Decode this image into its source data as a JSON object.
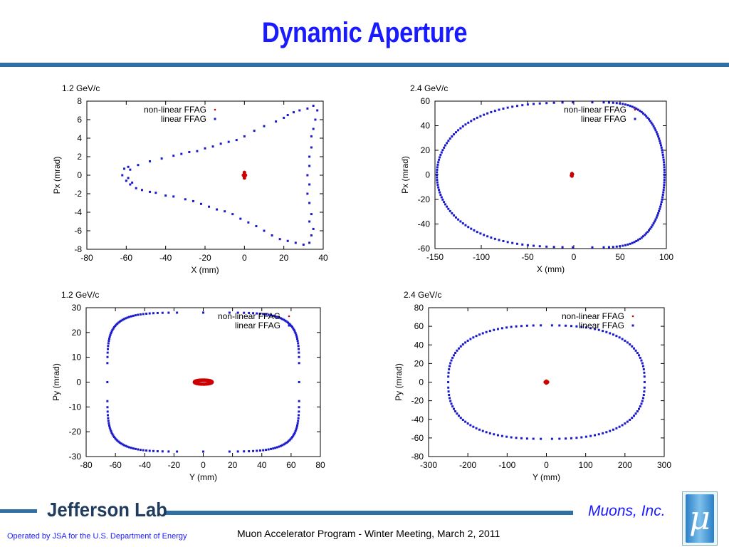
{
  "slide": {
    "title": "Dynamic Aperture",
    "footer_left": "Operated by JSA for the U.S. Department of Energy",
    "footer_center": "Muon Accelerator Program - Winter Meeting, March 2, 2011",
    "logo_text": "Jefferson Lab",
    "brand_text": "Muons, Inc.",
    "brand_glyph": "μ"
  },
  "colors": {
    "title": "#1a1aff",
    "rule": "#2f6fa3",
    "nonlinear": "#cc0000",
    "linear": "#1a1acc"
  },
  "chart_data": [
    {
      "type": "scatter",
      "title": "1.2 GeV/c",
      "xlabel": "X (mm)",
      "ylabel": "Px (mrad)",
      "xlim": [
        -80,
        40
      ],
      "ylim": [
        -8,
        8
      ],
      "xticks": [
        -80,
        -60,
        -40,
        -20,
        0,
        20,
        40
      ],
      "yticks": [
        -8,
        -6,
        -4,
        -2,
        0,
        2,
        4,
        6,
        8
      ],
      "legend_position": "top-left",
      "series": [
        {
          "name": "non-linear FFAG",
          "marker": "dot",
          "color": "#cc0000",
          "points": [
            [
              0,
              0.3
            ],
            [
              0,
              -0.3
            ],
            [
              -0.5,
              0
            ],
            [
              0.5,
              0
            ],
            [
              0,
              0.1
            ],
            [
              0,
              -0.1
            ]
          ]
        },
        {
          "name": "linear FFAG",
          "marker": "square",
          "color": "#1a1acc",
          "points": [
            [
              -62,
              0
            ],
            [
              -61,
              0.7
            ],
            [
              -59,
              0.9
            ],
            [
              -60,
              -0.6
            ],
            [
              -58,
              -1
            ],
            [
              -55,
              -1.4
            ],
            [
              -52,
              -1.6
            ],
            [
              -48,
              -1.8
            ],
            [
              -45,
              -1.9
            ],
            [
              -40,
              -2.2
            ],
            [
              -36,
              -2.3
            ],
            [
              -30,
              -2.6
            ],
            [
              -26,
              -2.8
            ],
            [
              -22,
              -3.1
            ],
            [
              -18,
              -3.4
            ],
            [
              -14,
              -3.7
            ],
            [
              -10,
              -3.9
            ],
            [
              -6,
              -4.2
            ],
            [
              -2,
              -4.7
            ],
            [
              2,
              -5.1
            ],
            [
              6,
              -5.5
            ],
            [
              10,
              -6.0
            ],
            [
              14,
              -6.5
            ],
            [
              18,
              -6.9
            ],
            [
              22,
              -7.1
            ],
            [
              26,
              -7.3
            ],
            [
              30,
              -7.5
            ],
            [
              33,
              -7.3
            ],
            [
              34,
              -6.5
            ],
            [
              35,
              -5.8
            ],
            [
              33,
              -5.0
            ],
            [
              34,
              -4.2
            ],
            [
              33,
              -3.0
            ],
            [
              32,
              -2.0
            ],
            [
              33,
              -1.0
            ],
            [
              32,
              0
            ],
            [
              33,
              1.0
            ],
            [
              33,
              2.0
            ],
            [
              34,
              3.0
            ],
            [
              34,
              4.2
            ],
            [
              35,
              5.0
            ],
            [
              36,
              6.0
            ],
            [
              37,
              7.0
            ],
            [
              35,
              7.5
            ],
            [
              32,
              7.2
            ],
            [
              28,
              7.0
            ],
            [
              25,
              6.8
            ],
            [
              22,
              6.5
            ],
            [
              20,
              6.2
            ],
            [
              16,
              5.8
            ],
            [
              10,
              5.3
            ],
            [
              5,
              4.8
            ],
            [
              0,
              4.2
            ],
            [
              -4,
              3.8
            ],
            [
              -8,
              3.6
            ],
            [
              -12,
              3.4
            ],
            [
              -16,
              3.1
            ],
            [
              -20,
              2.9
            ],
            [
              -24,
              2.6
            ],
            [
              -28,
              2.5
            ],
            [
              -32,
              2.3
            ],
            [
              -36,
              2.1
            ],
            [
              -42,
              1.8
            ],
            [
              -48,
              1.5
            ],
            [
              -54,
              1.1
            ],
            [
              -58,
              0.6
            ],
            [
              -59,
              -0.3
            ],
            [
              -57,
              -0.8
            ]
          ]
        }
      ]
    },
    {
      "type": "scatter",
      "title": "2.4 GeV/c",
      "xlabel": "X (mm)",
      "ylabel": "Px (mrad)",
      "xlim": [
        -150,
        100
      ],
      "ylim": [
        -60,
        60
      ],
      "xticks": [
        -150,
        -100,
        -50,
        0,
        50,
        100
      ],
      "yticks": [
        -60,
        -40,
        -20,
        0,
        20,
        40,
        60
      ],
      "legend_position": "top-right",
      "series": [
        {
          "name": "non-linear FFAG",
          "marker": "dot",
          "color": "#cc0000",
          "points": [
            [
              -2,
              0
            ],
            [
              -2,
              1
            ],
            [
              -2,
              -1
            ],
            [
              -1.5,
              0.5
            ],
            [
              -2.5,
              -0.5
            ]
          ]
        },
        {
          "name": "linear FFAG",
          "marker": "square",
          "color": "#1a1acc",
          "egg": {
            "cx": 20,
            "cy": 0,
            "a_left": 168,
            "a_right": 78,
            "b": 59
          },
          "n_points": 180
        }
      ]
    },
    {
      "type": "scatter",
      "title": "1.2 GeV/c",
      "xlabel": "Y (mm)",
      "ylabel": "Py (mrad)",
      "xlim": [
        -80,
        80
      ],
      "ylim": [
        -30,
        30
      ],
      "xticks": [
        -80,
        -60,
        -40,
        -20,
        0,
        20,
        40,
        60,
        80
      ],
      "yticks": [
        -30,
        -20,
        -10,
        0,
        10,
        20,
        30
      ],
      "legend_position": "top-right",
      "series": [
        {
          "name": "non-linear FFAG",
          "marker": "dot",
          "color": "#cc0000",
          "ellipse": {
            "cx": 0,
            "cy": 0,
            "rx": 6,
            "ry": 0.8
          },
          "n_points": 40
        },
        {
          "name": "linear FFAG",
          "marker": "square",
          "color": "#1a1acc",
          "superellipse": {
            "cx": 0,
            "cy": 0,
            "rx": 65.5,
            "ry": 28,
            "n": 5
          },
          "n_points": 160
        }
      ]
    },
    {
      "type": "scatter",
      "title": "2.4 GeV/c",
      "xlabel": "Y (mm)",
      "ylabel": "Py (mrad)",
      "xlim": [
        -300,
        300
      ],
      "ylim": [
        -80,
        80
      ],
      "xticks": [
        -300,
        -200,
        -100,
        0,
        100,
        200,
        300
      ],
      "yticks": [
        -80,
        -60,
        -40,
        -20,
        0,
        20,
        40,
        60,
        80
      ],
      "legend_position": "top-right",
      "series": [
        {
          "name": "non-linear FFAG",
          "marker": "dot",
          "color": "#cc0000",
          "points": [
            [
              0,
              0
            ],
            [
              3,
              0
            ],
            [
              -3,
              0
            ],
            [
              0,
              1
            ],
            [
              0,
              -1
            ]
          ]
        },
        {
          "name": "linear FFAG",
          "marker": "square",
          "color": "#1a1acc",
          "superellipse": {
            "cx": 0,
            "cy": 0,
            "rx": 250,
            "ry": 61,
            "n": 2.6
          },
          "n_points": 130
        }
      ]
    }
  ]
}
